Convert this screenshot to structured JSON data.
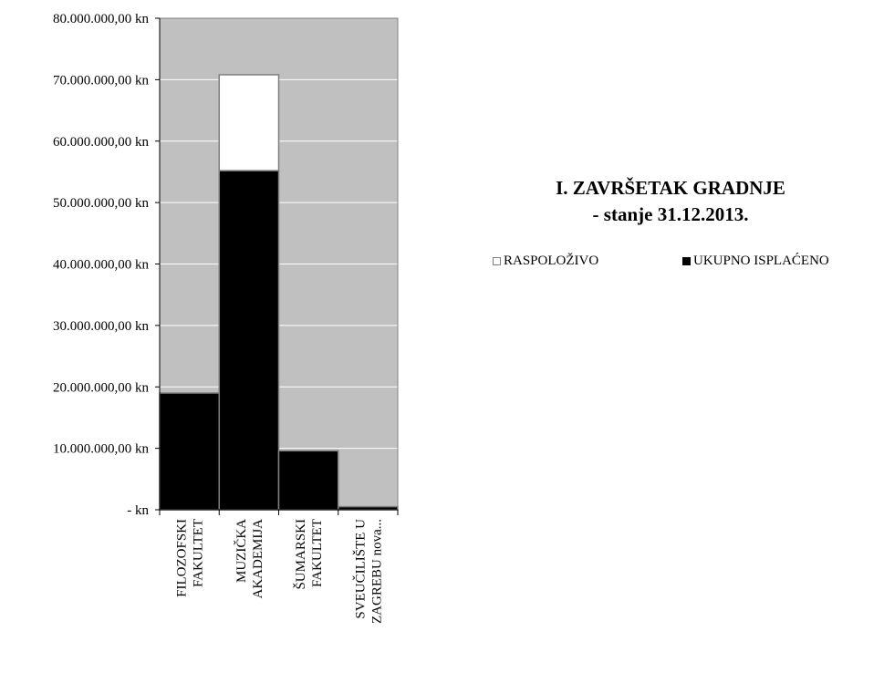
{
  "chart_data": {
    "type": "bar",
    "stacked": true,
    "title": "I. ZAVRŠETAK GRADNJE",
    "subtitle": "- stanje 31.12.2013.",
    "categories": [
      [
        "FILOZOFSKI",
        "FAKULTET"
      ],
      [
        "MUZIČKA",
        "AKADEMIJA"
      ],
      [
        "ŠUMARSKI",
        "FAKULTET"
      ],
      [
        "SVEUČILIŠTE U",
        "ZAGREBU nova..."
      ]
    ],
    "series": [
      {
        "name": "UKUPNO ISPLAĆENO",
        "color": "#000000",
        "values": [
          19000000,
          55200000,
          9600000,
          500000
        ]
      },
      {
        "name": "RASPOLOŽIVO",
        "color": "#ffffff",
        "values": [
          0,
          15600000,
          0,
          0
        ]
      }
    ],
    "ylim": [
      0,
      80000000
    ],
    "yticks": [
      {
        "value": 0,
        "label": "-  kn"
      },
      {
        "value": 10000000,
        "label": "10.000.000,00 kn"
      },
      {
        "value": 20000000,
        "label": "20.000.000,00 kn"
      },
      {
        "value": 30000000,
        "label": "30.000.000,00 kn"
      },
      {
        "value": 40000000,
        "label": "40.000.000,00 kn"
      },
      {
        "value": 50000000,
        "label": "50.000.000,00 kn"
      },
      {
        "value": 60000000,
        "label": "60.000.000,00 kn"
      },
      {
        "value": 70000000,
        "label": "70.000.000,00 kn"
      },
      {
        "value": 80000000,
        "label": "80.000.000,00 kn"
      }
    ],
    "grid": true,
    "plot_background": "#c0c0c0",
    "legend_position": "right",
    "legend": [
      "RASPOLOŽIVO",
      "UKUPNO ISPLAĆENO"
    ]
  }
}
